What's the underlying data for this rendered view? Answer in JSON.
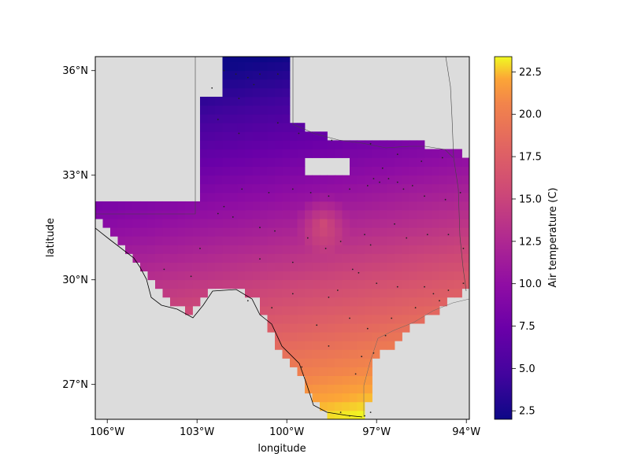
{
  "map": {
    "xlabel": "longitude",
    "ylabel": "latitude",
    "x_ticks": [
      {
        "value": -106,
        "label": "106°W"
      },
      {
        "value": -103,
        "label": "103°W"
      },
      {
        "value": -100,
        "label": "100°W"
      },
      {
        "value": -97,
        "label": "97°W"
      },
      {
        "value": -94,
        "label": "94°W"
      }
    ],
    "y_ticks": [
      {
        "value": 27,
        "label": "27°N"
      },
      {
        "value": 30,
        "label": "30°N"
      },
      {
        "value": 33,
        "label": "33°N"
      },
      {
        "value": 36,
        "label": "36°N"
      }
    ],
    "lon_range": [
      -106.4,
      -93.9
    ],
    "lat_range": [
      26.0,
      36.4
    ],
    "land_color": "#dcdcdc",
    "colormap": "plasma"
  },
  "colorbar": {
    "label": "Air temperature (C)",
    "range": [
      2.0,
      23.4
    ],
    "ticks": [
      {
        "value": 2.5,
        "label": "2.5"
      },
      {
        "value": 5.0,
        "label": "5.0"
      },
      {
        "value": 7.5,
        "label": "7.5"
      },
      {
        "value": 10.0,
        "label": "10.0"
      },
      {
        "value": 12.5,
        "label": "12.5"
      },
      {
        "value": 15.0,
        "label": "15.0"
      },
      {
        "value": 17.5,
        "label": "17.5"
      },
      {
        "value": 20.0,
        "label": "20.0"
      },
      {
        "value": 22.5,
        "label": "22.5"
      }
    ]
  },
  "chart_data": {
    "type": "heatmap",
    "xlabel": "longitude",
    "ylabel": "latitude",
    "colorbar_label": "Air temperature (C)",
    "value_range": [
      2.0,
      23.4
    ],
    "grid_resolution_deg": 0.25,
    "temperature_gradient": {
      "north_lat": 36.0,
      "north_temp": 3.0,
      "south_lat": 26.1,
      "south_temp": 22.5,
      "east_bias_per_deg_lon": 0.35,
      "warm_spot": {
        "lon": -98.8,
        "lat": 31.6,
        "temp": 16.5
      }
    },
    "stations": [
      [
        -102.1,
        36.0
      ],
      [
        -101.7,
        35.9
      ],
      [
        -101.3,
        35.8
      ],
      [
        -100.9,
        35.9
      ],
      [
        -100.3,
        35.9
      ],
      [
        -102.5,
        35.5
      ],
      [
        -101.6,
        35.2
      ],
      [
        -101.1,
        35.6
      ],
      [
        -102.3,
        34.6
      ],
      [
        -101.6,
        34.2
      ],
      [
        -100.3,
        34.5
      ],
      [
        -99.6,
        34.2
      ],
      [
        -98.5,
        34.0
      ],
      [
        -97.2,
        33.9
      ],
      [
        -96.3,
        33.6
      ],
      [
        -95.5,
        33.4
      ],
      [
        -94.8,
        33.5
      ],
      [
        -96.8,
        33.2
      ],
      [
        -97.1,
        32.9
      ],
      [
        -96.9,
        32.8
      ],
      [
        -96.6,
        32.9
      ],
      [
        -96.3,
        32.8
      ],
      [
        -96.1,
        32.6
      ],
      [
        -95.8,
        32.7
      ],
      [
        -95.4,
        32.4
      ],
      [
        -94.7,
        32.3
      ],
      [
        -94.2,
        32.5
      ],
      [
        -97.3,
        32.7
      ],
      [
        -97.9,
        32.6
      ],
      [
        -98.6,
        32.4
      ],
      [
        -99.2,
        32.5
      ],
      [
        -99.8,
        32.6
      ],
      [
        -100.6,
        32.5
      ],
      [
        -101.5,
        32.6
      ],
      [
        -102.1,
        32.1
      ],
      [
        -102.3,
        31.9
      ],
      [
        -101.8,
        31.8
      ],
      [
        -100.9,
        31.5
      ],
      [
        -100.4,
        31.4
      ],
      [
        -99.3,
        31.2
      ],
      [
        -98.2,
        31.1
      ],
      [
        -97.4,
        31.3
      ],
      [
        -97.2,
        31.0
      ],
      [
        -96.4,
        31.6
      ],
      [
        -96.0,
        31.2
      ],
      [
        -95.3,
        31.3
      ],
      [
        -94.6,
        31.3
      ],
      [
        -94.1,
        30.9
      ],
      [
        -98.7,
        30.9
      ],
      [
        -99.8,
        30.5
      ],
      [
        -100.9,
        30.6
      ],
      [
        -102.9,
        30.9
      ],
      [
        -104.1,
        30.3
      ],
      [
        -103.2,
        30.1
      ],
      [
        -101.3,
        29.4
      ],
      [
        -100.5,
        29.2
      ],
      [
        -99.8,
        29.6
      ],
      [
        -98.6,
        29.5
      ],
      [
        -98.3,
        29.7
      ],
      [
        -97.8,
        30.3
      ],
      [
        -97.6,
        30.2
      ],
      [
        -97.0,
        29.9
      ],
      [
        -96.3,
        29.8
      ],
      [
        -95.4,
        29.8
      ],
      [
        -95.1,
        29.6
      ],
      [
        -94.9,
        29.4
      ],
      [
        -94.6,
        29.7
      ],
      [
        -94.1,
        29.9
      ],
      [
        -96.5,
        28.9
      ],
      [
        -97.3,
        28.6
      ],
      [
        -97.5,
        27.8
      ],
      [
        -97.1,
        27.9
      ],
      [
        -97.7,
        27.3
      ],
      [
        -98.2,
        26.2
      ],
      [
        -97.9,
        26.1
      ],
      [
        -97.4,
        26.1
      ],
      [
        -97.2,
        26.2
      ],
      [
        -99.5,
        27.5
      ],
      [
        -98.6,
        28.1
      ],
      [
        -99.0,
        28.7
      ],
      [
        -97.9,
        28.9
      ],
      [
        -96.7,
        28.4
      ],
      [
        -95.7,
        29.2
      ]
    ]
  },
  "styles": {
    "frame_color": "#000000",
    "station_color": "#222222",
    "border_color": "#000000",
    "state_border_color": "#555555"
  }
}
